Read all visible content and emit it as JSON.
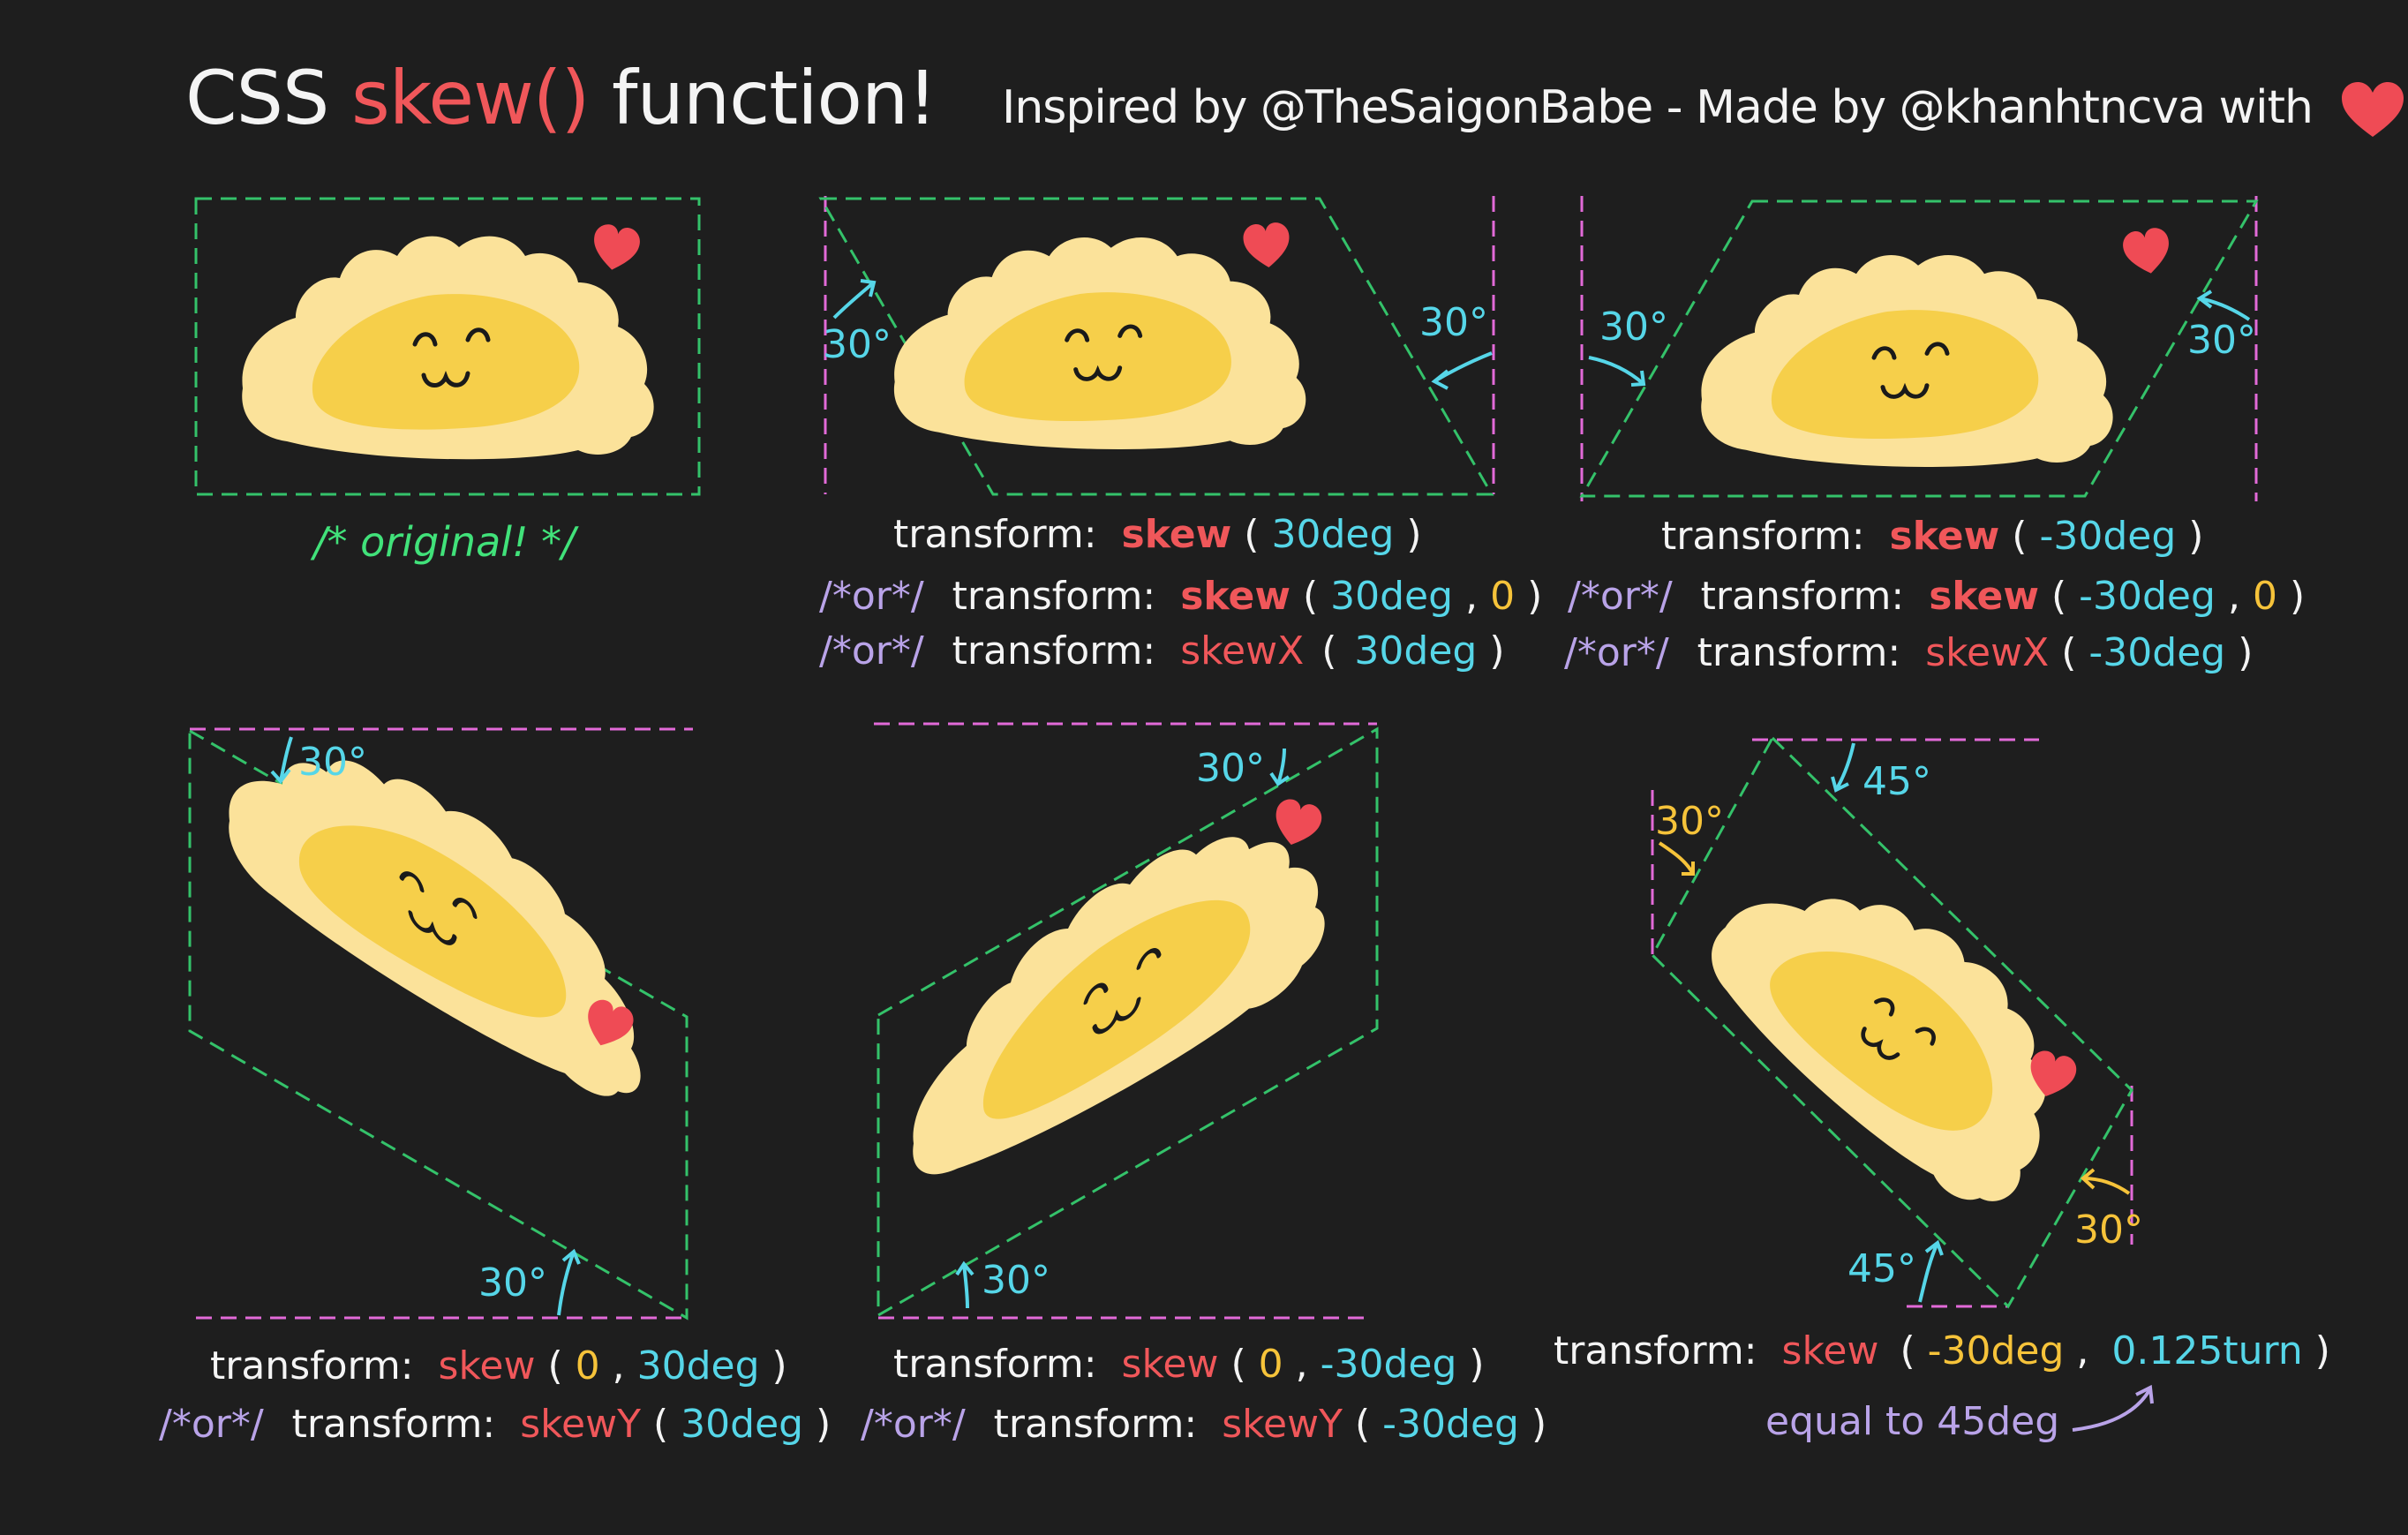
{
  "header": {
    "title_css": "CSS",
    "title_skew": "skew()",
    "title_function": "function!",
    "credits_text": "Inspired by @TheSaigonBabe - Made by @khanhtncva with"
  },
  "panels": {
    "original": {
      "comment": "/* original! */"
    },
    "skew_x_pos": {
      "line1_kw": "transform:",
      "line1_fn": "skew",
      "line1_open": "(",
      "line1_arg": "30deg",
      "line1_close": ")",
      "line2_or": "/*or*/",
      "line2_kw": "transform:",
      "line2_fn": "skew",
      "line2_open": "(",
      "line2_arg1": "30deg",
      "line2_comma": ",",
      "line2_arg2": "0",
      "line2_close": ")",
      "line3_or": "/*or*/",
      "line3_kw": "transform:",
      "line3_fn": "skewX",
      "line3_open": "(",
      "line3_arg": "30deg",
      "line3_close": ")",
      "angle_left": "30°",
      "angle_right": "30°"
    },
    "skew_x_neg": {
      "line1_kw": "transform:",
      "line1_fn": "skew",
      "line1_open": "(",
      "line1_arg": "-30deg",
      "line1_close": ")",
      "line2_or": "/*or*/",
      "line2_kw": "transform:",
      "line2_fn": "skew",
      "line2_open": "(",
      "line2_arg1": "-30deg",
      "line2_comma": ",",
      "line2_arg2": "0",
      "line2_close": ")",
      "line3_or": "/*or*/",
      "line3_kw": "transform:",
      "line3_fn": "skewX",
      "line3_open": "(",
      "line3_arg": "-30deg",
      "line3_close": ")",
      "angle_left": "30°",
      "angle_right": "30°"
    },
    "skew_y_pos": {
      "line1_kw": "transform:",
      "line1_fn": "skew",
      "line1_open": "(",
      "line1_arg1": "0",
      "line1_comma": ",",
      "line1_arg2": "30deg",
      "line1_close": ")",
      "line2_or": "/*or*/",
      "line2_kw": "transform:",
      "line2_fn": "skewY",
      "line2_open": "(",
      "line2_arg": "30deg",
      "line2_close": ")",
      "angle_top": "30°",
      "angle_bottom": "30°"
    },
    "skew_y_neg": {
      "line1_kw": "transform:",
      "line1_fn": "skew",
      "line1_open": "(",
      "line1_arg1": "0",
      "line1_comma": ",",
      "line1_arg2": "-30deg",
      "line1_close": ")",
      "line2_or": "/*or*/",
      "line2_kw": "transform:",
      "line2_fn": "skewY",
      "line2_open": "(",
      "line2_arg": "-30deg",
      "line2_close": ")",
      "angle_top": "30°",
      "angle_bottom": "30°"
    },
    "skew_both": {
      "line1_kw": "transform:",
      "line1_fn": "skew",
      "line1_open": "(",
      "line1_arg1": "-30deg",
      "line1_comma": ",",
      "line1_arg2": "0.125turn",
      "line1_close": ")",
      "note": "equal to 45deg",
      "angle_top_left": "30°",
      "angle_top_right": "45°",
      "angle_bottom_left": "45°",
      "angle_bottom_right": "30°"
    }
  },
  "colors": {
    "background": "#1e1e1e",
    "dumpling_outer": "#fbe29a",
    "dumpling_inner": "#f6cf4a",
    "heart": "#ef4b55",
    "box_green": "#34c26a",
    "box_pink": "#e26ad8",
    "cyan": "#56d6e8",
    "yellow": "#f6c33a",
    "red_text": "#f0575a",
    "purple": "#b9a3e8"
  }
}
